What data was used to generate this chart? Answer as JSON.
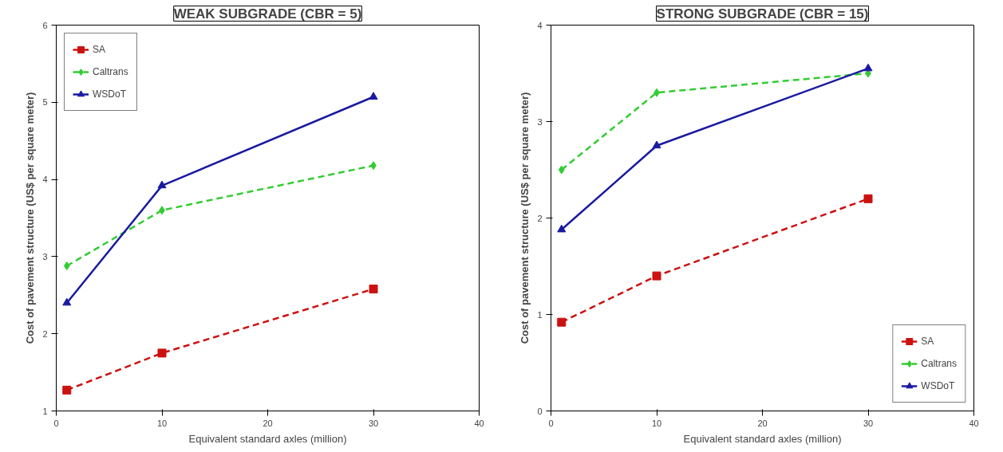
{
  "chart_data": [
    {
      "type": "line",
      "title": "WEAK SUBGRADE (CBR = 5)",
      "xlabel": "Equivalent standard axles (million)",
      "ylabel": "Cost of pavement structure (US$ per square meter)",
      "x": [
        1,
        10,
        30
      ],
      "xlim": [
        0,
        40
      ],
      "xticks": [
        0,
        10,
        20,
        30,
        40
      ],
      "ylim": [
        1,
        6
      ],
      "yticks": [
        1,
        2,
        3,
        4,
        5,
        6
      ],
      "legend": "top left",
      "series": [
        {
          "name": "SA",
          "color": "#cc1111",
          "values": [
            1.27,
            1.75,
            2.58
          ],
          "marker": "square",
          "line_style": "dashed"
        },
        {
          "name": "Caltrans",
          "color": "#33cc33",
          "values": [
            2.88,
            3.6,
            4.18
          ],
          "marker": "diamond",
          "line_style": "dashed"
        },
        {
          "name": "WSDoT",
          "color": "#1a1aa0",
          "values": [
            2.4,
            3.92,
            5.07
          ],
          "marker": "triangle",
          "line_style": "solid"
        }
      ]
    },
    {
      "type": "line",
      "title": "STRONG SUBGRADE (CBR = 15)",
      "xlabel": "Equivalent standard axles (million)",
      "ylabel": "Cost of pavement structure (US$ per square meter)",
      "x": [
        1,
        10,
        30
      ],
      "xlim": [
        0,
        40
      ],
      "xticks": [
        0,
        10,
        20,
        30,
        40
      ],
      "ylim": [
        0,
        4
      ],
      "yticks": [
        0,
        1,
        2,
        3,
        4
      ],
      "legend": "bottom right",
      "series": [
        {
          "name": "SA",
          "color": "#cc1111",
          "values": [
            0.92,
            1.4,
            2.2
          ],
          "marker": "square",
          "line_style": "dashed"
        },
        {
          "name": "Caltrans",
          "color": "#33cc33",
          "values": [
            2.5,
            3.3,
            3.5
          ],
          "marker": "diamond",
          "line_style": "dashed"
        },
        {
          "name": "WSDoT",
          "color": "#1a1aa0",
          "values": [
            1.88,
            2.75,
            3.55
          ],
          "marker": "triangle",
          "line_style": "solid"
        }
      ]
    }
  ]
}
